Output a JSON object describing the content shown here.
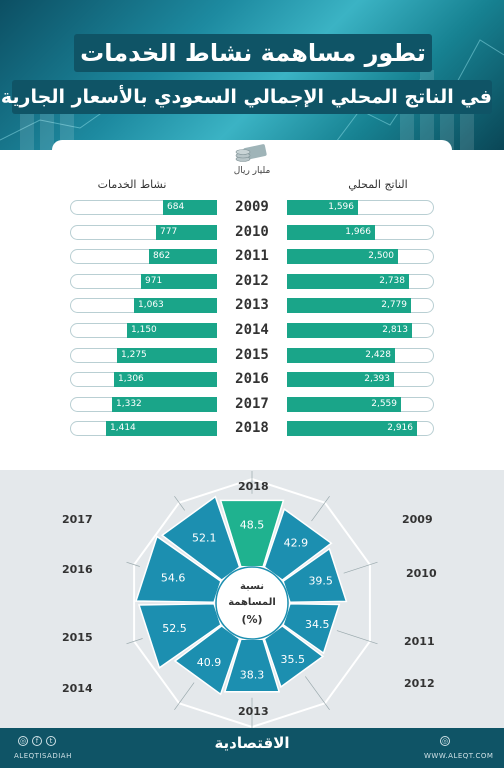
{
  "header": {
    "title": "تطور مساهمة نشاط الخدمات",
    "subtitle": "في الناتج المحلي الإجمالي السعودي بالأسعار الجارية"
  },
  "legend": {
    "right_column": "الناتج المحلي",
    "left_column": "نشاط الخدمات",
    "unit": "مليار ريال"
  },
  "colors": {
    "bar": "#1aa589",
    "radar_fill": "#1c8fb0",
    "radar_top": "#1fb28f",
    "header": "#0f5466"
  },
  "chart_data": [
    {
      "type": "bar",
      "title": "",
      "categories": [
        "2009",
        "2010",
        "2011",
        "2012",
        "2013",
        "2014",
        "2015",
        "2016",
        "2017",
        "2018"
      ],
      "series": [
        {
          "name": "الناتج المحلي",
          "values": [
            1596,
            1966,
            2500,
            2738,
            2779,
            2813,
            2428,
            2393,
            2559,
            2916
          ],
          "labels": [
            "1,596",
            "1,966",
            "2,500",
            "2,738",
            "2,779",
            "2,813",
            "2,428",
            "2,393",
            "2,559",
            "2,916"
          ]
        },
        {
          "name": "نشاط الخدمات",
          "values": [
            684,
            777,
            862,
            971,
            1063,
            1150,
            1275,
            1306,
            1332,
            1414
          ],
          "labels": [
            "684",
            "777",
            "862",
            "971",
            "1,063",
            "1,150",
            "1,275",
            "1,306",
            "1,332",
            "1,414"
          ]
        }
      ],
      "unit": "مليار ريال"
    },
    {
      "type": "radar",
      "title": "نسبة المساهمة (%)",
      "categories": [
        "2018",
        "2009",
        "2010",
        "2011",
        "2012",
        "2013",
        "2014",
        "2015",
        "2016",
        "2017"
      ],
      "values": [
        48.5,
        42.9,
        39.5,
        34.5,
        35.5,
        38.3,
        40.9,
        52.5,
        54.6,
        52.1
      ]
    }
  ],
  "center_label": {
    "line1": "نسبة",
    "line2": "المساهمة",
    "line3": "(%)"
  },
  "footer": {
    "brand": "الاقتصادية",
    "handle_left": "ALEQTISADIAH",
    "handle_right": "WWW.ALEQT.COM"
  }
}
